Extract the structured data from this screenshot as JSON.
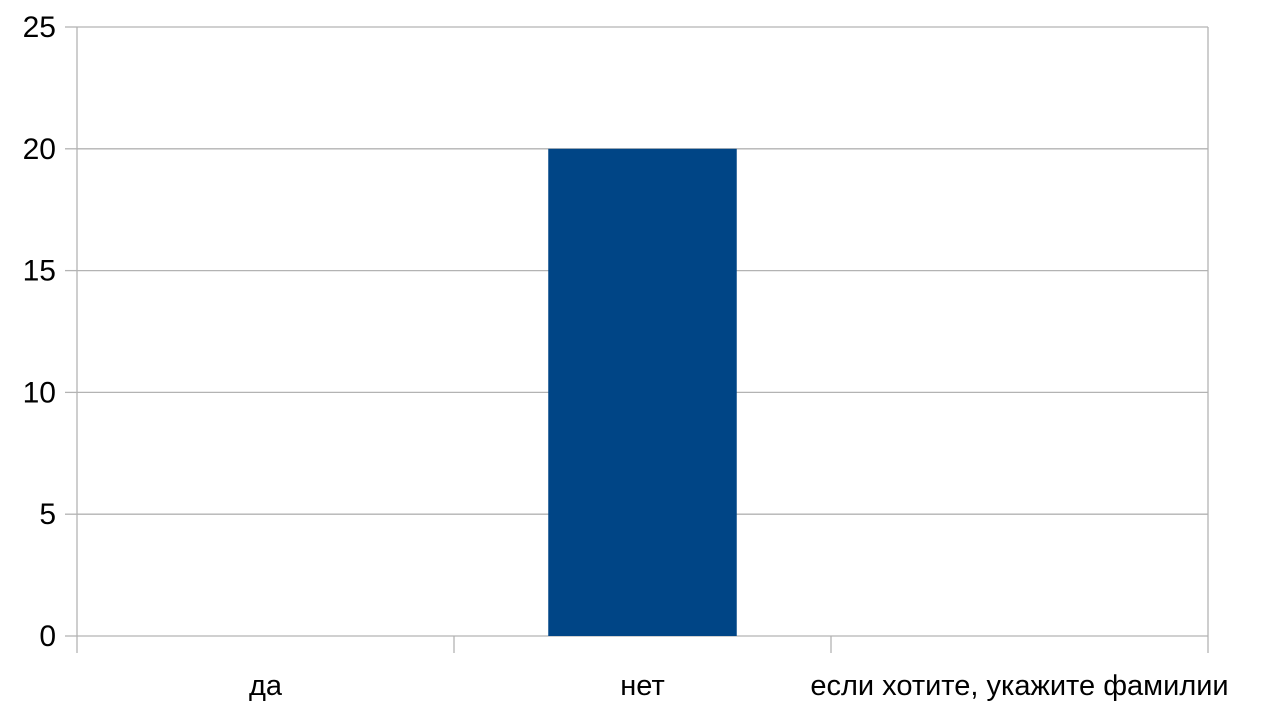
{
  "chart_data": {
    "type": "bar",
    "title": "",
    "xlabel": "",
    "ylabel": "",
    "categories": [
      "да",
      "нет",
      "если хотите, укажите фамилии"
    ],
    "series": [
      {
        "values": [
          0,
          20,
          0
        ],
        "color": "#004586"
      }
    ],
    "ylim": [
      0,
      25
    ],
    "yticks": [
      0,
      5,
      10,
      15,
      20,
      25
    ],
    "ytick_labels": [
      "0",
      "5",
      "10",
      "15",
      "20",
      "25"
    ],
    "grid": true,
    "legend": "none"
  },
  "colors": {
    "grid": "#b3b3b3",
    "axis": "#b3b3b3",
    "bar": "#004586"
  }
}
